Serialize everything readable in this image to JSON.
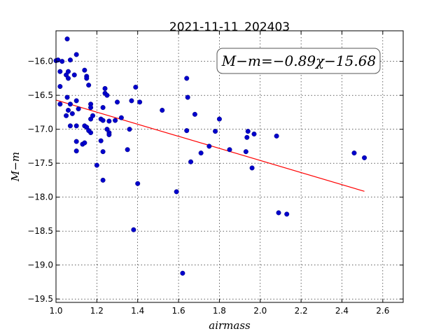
{
  "chart_data": {
    "type": "scatter",
    "title": "2021-11-11_202403",
    "xlabel": "airmass",
    "ylabel": "M−m",
    "xlim": [
      1.0,
      2.7
    ],
    "ylim": [
      -19.55,
      -15.55
    ],
    "y_inverted": true,
    "grid": true,
    "xticks": [
      "1.0",
      "1.2",
      "1.4",
      "1.6",
      "1.8",
      "2.0",
      "2.2",
      "2.4",
      "2.6"
    ],
    "xtick_values": [
      1.0,
      1.2,
      1.4,
      1.6,
      1.8,
      2.0,
      2.2,
      2.4,
      2.6
    ],
    "yticks": [
      "−16.0",
      "−16.5",
      "−17.0",
      "−17.5",
      "−18.0",
      "−18.5",
      "−19.0",
      "−19.5"
    ],
    "ytick_values": [
      -16.0,
      -16.5,
      -17.0,
      -17.5,
      -18.0,
      -18.5,
      -19.0,
      -19.5
    ],
    "annotation": "M−m=−0.89χ−15.68",
    "fit": {
      "slope": -0.89,
      "intercept": -15.68,
      "x_range": [
        1.0,
        2.51
      ],
      "color": "#ff0000"
    },
    "point_color": "#0000cc",
    "points": [
      [
        1.0,
        -15.99
      ],
      [
        1.01,
        -15.98
      ],
      [
        1.03,
        -16.0
      ],
      [
        1.02,
        -16.15
      ],
      [
        1.05,
        -16.2
      ],
      [
        1.06,
        -16.25
      ],
      [
        1.06,
        -16.15
      ],
      [
        1.07,
        -15.98
      ],
      [
        1.09,
        -16.2
      ],
      [
        1.055,
        -15.67
      ],
      [
        1.1,
        -15.9
      ],
      [
        1.02,
        -16.37
      ],
      [
        1.055,
        -16.53
      ],
      [
        1.07,
        -16.63
      ],
      [
        1.08,
        -16.77
      ],
      [
        1.06,
        -16.72
      ],
      [
        1.05,
        -16.8
      ],
      [
        1.07,
        -16.95
      ],
      [
        1.02,
        -16.63
      ],
      [
        1.1,
        -16.58
      ],
      [
        1.11,
        -16.7
      ],
      [
        1.1,
        -17.18
      ],
      [
        1.1,
        -16.95
      ],
      [
        1.13,
        -17.22
      ],
      [
        1.14,
        -17.2
      ],
      [
        1.1,
        -17.32
      ],
      [
        1.14,
        -16.95
      ],
      [
        1.14,
        -16.13
      ],
      [
        1.15,
        -16.22
      ],
      [
        1.15,
        -16.25
      ],
      [
        1.16,
        -16.35
      ],
      [
        1.17,
        -16.63
      ],
      [
        1.17,
        -16.68
      ],
      [
        1.18,
        -16.8
      ],
      [
        1.17,
        -16.85
      ],
      [
        1.15,
        -16.97
      ],
      [
        1.17,
        -17.05
      ],
      [
        1.16,
        -17.02
      ],
      [
        1.2,
        -17.53
      ],
      [
        1.22,
        -16.85
      ],
      [
        1.22,
        -17.17
      ],
      [
        1.23,
        -17.33
      ],
      [
        1.23,
        -17.75
      ],
      [
        1.24,
        -16.4
      ],
      [
        1.24,
        -16.47
      ],
      [
        1.25,
        -16.5
      ],
      [
        1.23,
        -16.68
      ],
      [
        1.23,
        -16.87
      ],
      [
        1.25,
        -17.0
      ],
      [
        1.26,
        -16.88
      ],
      [
        1.26,
        -17.05
      ],
      [
        1.26,
        -17.08
      ],
      [
        1.29,
        -16.87
      ],
      [
        1.3,
        -16.6
      ],
      [
        1.32,
        -16.83
      ],
      [
        1.35,
        -17.3
      ],
      [
        1.36,
        -17.0
      ],
      [
        1.37,
        -16.58
      ],
      [
        1.39,
        -16.38
      ],
      [
        1.41,
        -16.6
      ],
      [
        1.38,
        -18.48
      ],
      [
        1.4,
        -17.8
      ],
      [
        1.52,
        -16.72
      ],
      [
        1.59,
        -17.92
      ],
      [
        1.62,
        -19.12
      ],
      [
        1.64,
        -16.25
      ],
      [
        1.645,
        -16.53
      ],
      [
        1.64,
        -17.02
      ],
      [
        1.66,
        -17.48
      ],
      [
        1.68,
        -16.78
      ],
      [
        1.71,
        -17.35
      ],
      [
        1.75,
        -17.25
      ],
      [
        1.78,
        -17.03
      ],
      [
        1.8,
        -16.85
      ],
      [
        1.85,
        -17.3
      ],
      [
        1.93,
        -17.33
      ],
      [
        1.935,
        -17.12
      ],
      [
        1.94,
        -17.03
      ],
      [
        1.96,
        -17.57
      ],
      [
        1.97,
        -17.07
      ],
      [
        2.08,
        -17.1
      ],
      [
        2.09,
        -18.23
      ],
      [
        2.13,
        -18.25
      ],
      [
        2.46,
        -17.35
      ],
      [
        2.51,
        -17.42
      ]
    ]
  }
}
